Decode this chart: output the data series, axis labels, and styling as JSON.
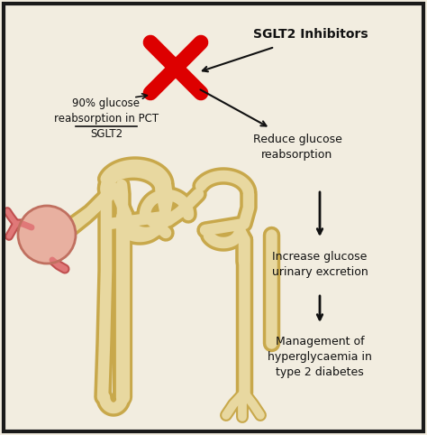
{
  "bg_color": "#f2ede0",
  "border_color": "#1a1a1a",
  "text_color": "#111111",
  "tube_fill": "#e8d8a0",
  "tube_outline": "#c8a84b",
  "glom_fill": "#e8b0a0",
  "glom_outline": "#c07060",
  "vessel_fill": "#e07878",
  "vessel_outline": "#c05050",
  "red_cross_color": "#dd0000",
  "arrow_color": "#111111",
  "label_sglt2_inhibitors": "SGLT2 Inhibitors",
  "label_90pct_line1": "90% glucose",
  "label_90pct_line2": "reabsorption in PCT",
  "label_90pct_line3": "SGLT2",
  "label_reduce_line1": "Reduce glucose",
  "label_reduce_line2": "reabsorption",
  "label_increase_line1": "Increase glucose",
  "label_increase_line2": "urinary excretion",
  "label_management_line1": "Management of",
  "label_management_line2": "hyperglycaemia in",
  "label_management_line3": "type 2 diabetes",
  "figsize": [
    4.74,
    4.82
  ],
  "dpi": 100
}
